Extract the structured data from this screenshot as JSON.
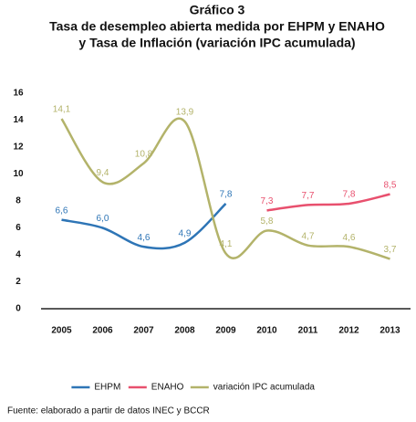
{
  "chart_data": {
    "type": "line",
    "title": "Gráfico 3",
    "subtitle": [
      "Tasa de desempleo abierta medida por EHPM y ENAHO",
      "y Tasa de Inflación (variación IPC acumulada)"
    ],
    "categories": [
      "2005",
      "2006",
      "2007",
      "2008",
      "2009",
      "2010",
      "2011",
      "2012",
      "2013"
    ],
    "series": [
      {
        "name": "EHPM",
        "color": "#2e75b6",
        "values": [
          6.6,
          6.0,
          4.6,
          4.9,
          7.8,
          null,
          null,
          null,
          null
        ],
        "value_labels": [
          "6,6",
          "6,0",
          "4,6",
          "4,9",
          "7,8",
          null,
          null,
          null,
          null
        ]
      },
      {
        "name": "ENAHO",
        "color": "#e8506e",
        "values": [
          null,
          null,
          null,
          null,
          null,
          7.3,
          7.7,
          7.8,
          8.5
        ],
        "value_labels": [
          null,
          null,
          null,
          null,
          null,
          "7,3",
          "7,7",
          "7,8",
          "8,5"
        ]
      },
      {
        "name": "variación IPC acumulada",
        "color": "#b3b36a",
        "values": [
          14.1,
          9.4,
          10.8,
          13.9,
          4.1,
          5.8,
          4.7,
          4.6,
          3.7
        ],
        "value_labels": [
          "14,1",
          "9,4",
          "10,8",
          "13,9",
          "4,1",
          "5,8",
          "4,7",
          "4,6",
          "3,7"
        ]
      }
    ],
    "ylim": [
      0,
      16
    ],
    "yticks": [
      0,
      2,
      4,
      6,
      8,
      10,
      12,
      14,
      16
    ],
    "grid": false,
    "legend": "bottom",
    "source": "Fuente: elaborado a partir de datos INEC y BCCR"
  }
}
